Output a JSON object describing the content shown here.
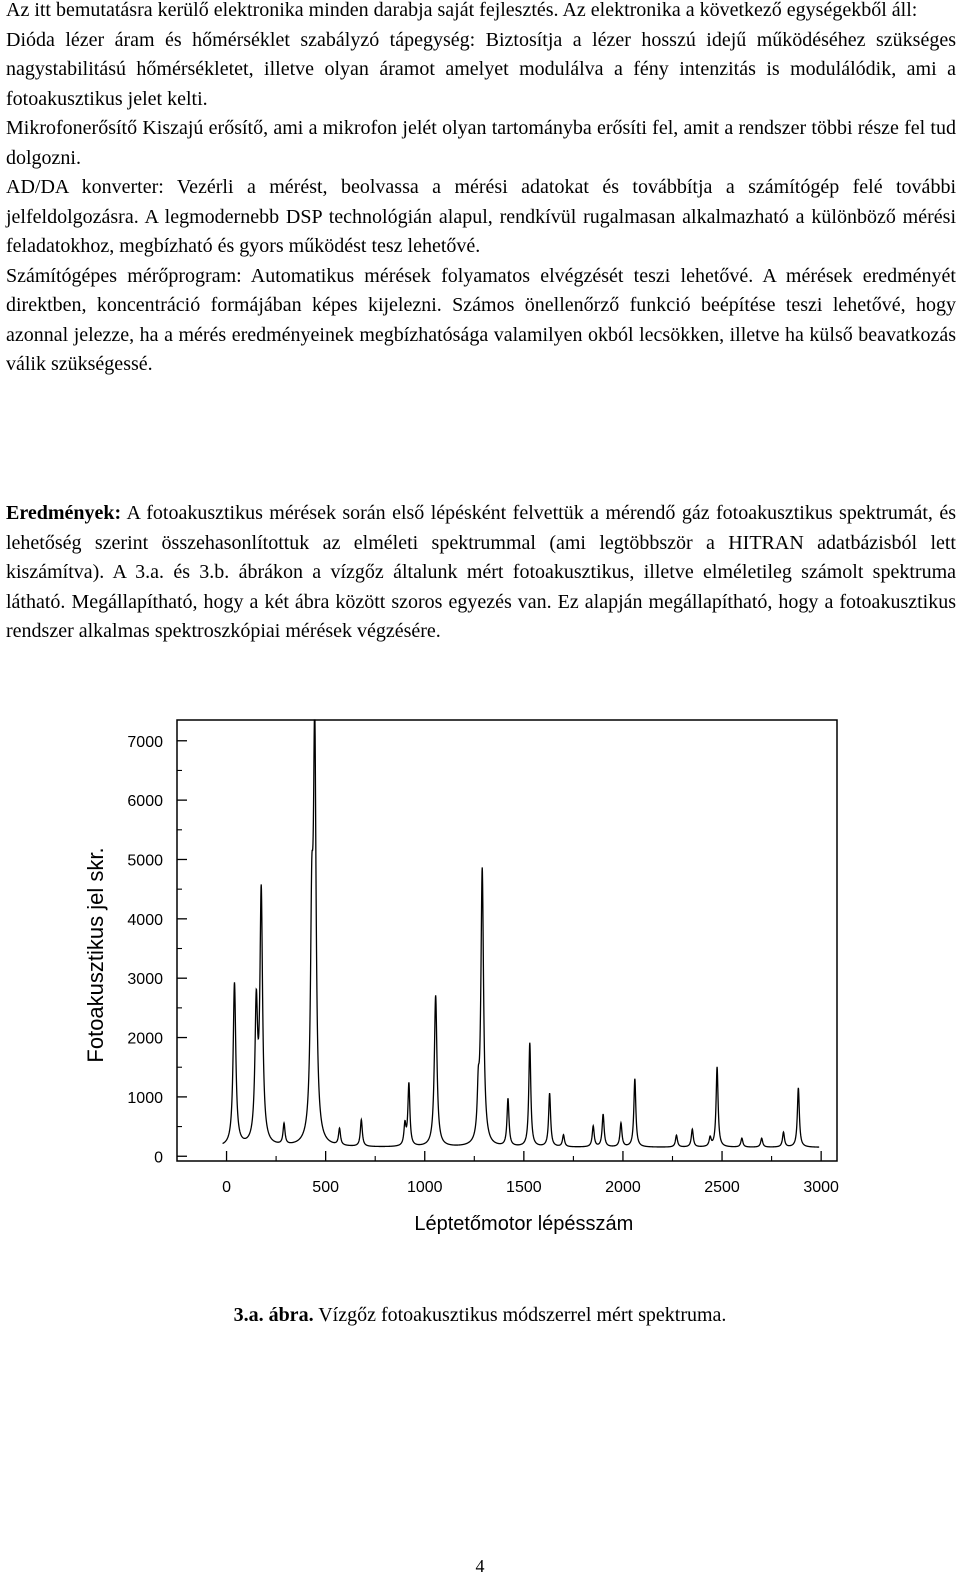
{
  "paragraphs": [
    "Az itt bemutatásra kerülő elektronika minden darabja saját fejlesztés. Az elektronika a következő egységekből áll:",
    "Dióda lézer áram és hőmérséklet szabályzó tápegység: Biztosítja a lézer hosszú idejű működéséhez szükséges nagystabilitású hőmérsékletet, illetve olyan áramot amelyet modulálva a fény intenzitás is modulálódik, ami a fotoakusztikus jelet kelti.",
    "Mikrofonerősítő Kiszajú erősítő, ami a mikrofon jelét olyan tartományba erősíti fel, amit a rendszer többi része fel tud dolgozni.",
    "AD/DA konverter: Vezérli a mérést, beolvassa a mérési adatokat és továbbítja a számítógép felé további jelfeldolgozásra. A legmodernebb DSP technológián alapul, rendkívül rugalmasan alkalmazható a különböző mérési feladatokhoz, megbízható és gyors működést tesz lehetővé.",
    "Számítógépes mérőprogram: Automatikus mérések folyamatos elvégzését teszi lehetővé. A mérések eredményét direktben, koncentráció formájában képes kijelezni. Számos önellenőrző funkció beépítése teszi lehetővé, hogy azonnal jelezze, ha a mérés eredményeinek megbízhatósága valamilyen okból lecsökken, illetve ha külső beavatkozás válik szükségessé."
  ],
  "results": {
    "heading": "Eredmények:",
    "text": " A fotoakusztikus mérések során első lépésként felvettük a mérendő gáz fotoakusztikus spektrumát, és lehetőség szerint összehasonlítottuk az elméleti spektrummal (ami legtöbbször a HITRAN adatbázisból lett kiszámítva). A 3.a. és 3.b. ábrákon a vízgőz általunk mért fotoakusztikus, illetve elméletileg számolt spektruma látható. Megállapítható, hogy a két ábra között szoros egyezés van. Ez alapján megállapítható, hogy a fotoakusztikus rendszer alkalmas spektroszkópiai mérések végzésére."
  },
  "chart_data": {
    "type": "line",
    "xlabel": "Léptetőmotor lépésszám",
    "ylabel": "Fotoakusztikus jel skr.",
    "xlim": [
      -250,
      3080
    ],
    "ylim": [
      -80,
      7350
    ],
    "x_ticks": [
      0,
      500,
      1000,
      1500,
      2000,
      2500,
      3000
    ],
    "y_ticks": [
      0,
      1000,
      2000,
      3000,
      4000,
      5000,
      6000,
      7000
    ],
    "baseline": 150,
    "line_color": "#000000",
    "series": [
      {
        "peaks": [
          {
            "x": 40,
            "y": 2900
          },
          {
            "x": 150,
            "y": 2400
          },
          {
            "x": 175,
            "y": 4350
          },
          {
            "x": 290,
            "y": 500
          },
          {
            "x": 430,
            "y": 3500
          },
          {
            "x": 445,
            "y": 6850
          },
          {
            "x": 570,
            "y": 430
          },
          {
            "x": 680,
            "y": 600
          },
          {
            "x": 900,
            "y": 500
          },
          {
            "x": 920,
            "y": 1200
          },
          {
            "x": 1055,
            "y": 2700
          },
          {
            "x": 1270,
            "y": 850
          },
          {
            "x": 1290,
            "y": 4800
          },
          {
            "x": 1420,
            "y": 950
          },
          {
            "x": 1530,
            "y": 1900
          },
          {
            "x": 1630,
            "y": 1050
          },
          {
            "x": 1700,
            "y": 350
          },
          {
            "x": 1850,
            "y": 500
          },
          {
            "x": 1900,
            "y": 700
          },
          {
            "x": 1990,
            "y": 550
          },
          {
            "x": 2060,
            "y": 1300
          },
          {
            "x": 2270,
            "y": 350
          },
          {
            "x": 2350,
            "y": 450
          },
          {
            "x": 2440,
            "y": 300
          },
          {
            "x": 2475,
            "y": 1500
          },
          {
            "x": 2600,
            "y": 300
          },
          {
            "x": 2700,
            "y": 300
          },
          {
            "x": 2810,
            "y": 400
          },
          {
            "x": 2885,
            "y": 1150
          }
        ]
      }
    ]
  },
  "caption": {
    "label": "3.a. ábra.",
    "text": " Vízgőz fotoakusztikus módszerrel mért spektruma."
  },
  "page_number": "4"
}
